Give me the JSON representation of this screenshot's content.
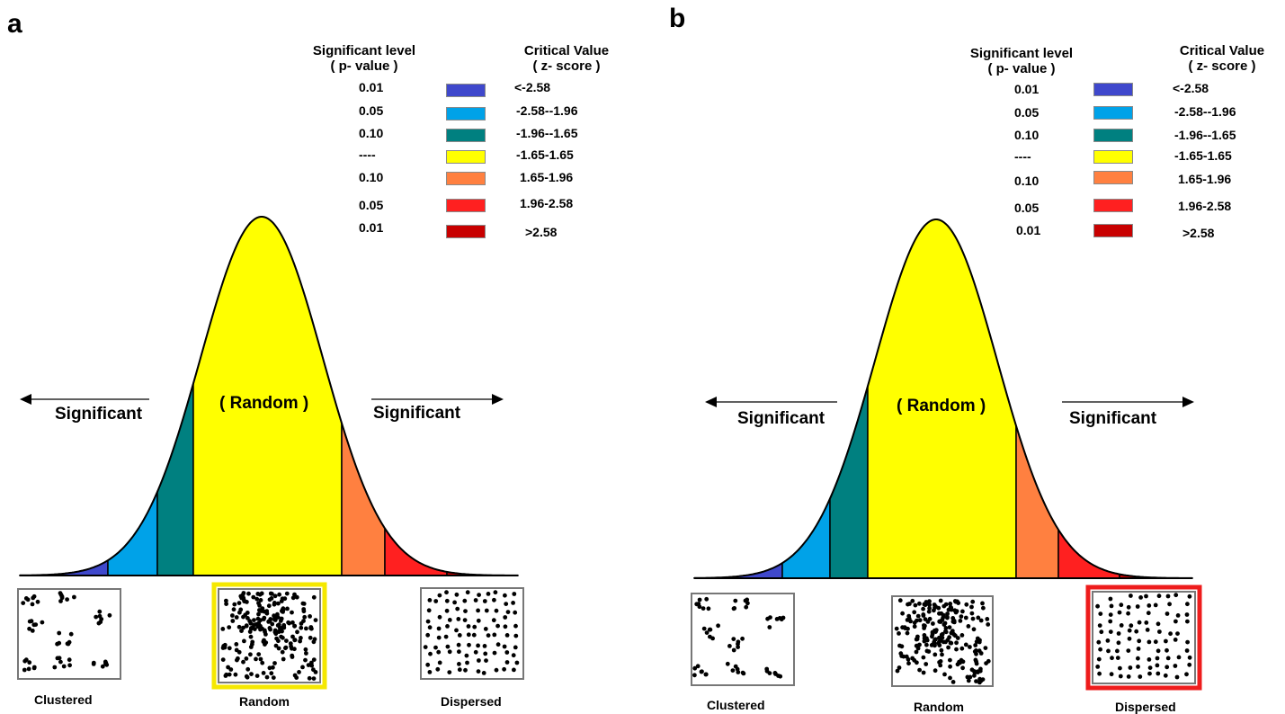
{
  "panels": [
    {
      "label": "a",
      "header": {
        "p_title": "Significant level",
        "p_sub": "( p- value )",
        "z_title": "Critical Value",
        "z_sub": "( z- score )"
      },
      "legend": [
        {
          "p": "0.01",
          "z": "<-2.58",
          "color": "#3f48cc"
        },
        {
          "p": "0.05",
          "z": "-2.58--1.96",
          "color": "#00a2e8"
        },
        {
          "p": "0.10",
          "z": "-1.96--1.65",
          "color": "#008080"
        },
        {
          "p": "----",
          "z": "-1.65-1.65",
          "color": "#ffff00"
        },
        {
          "p": "0.10",
          "z": "1.65-1.96",
          "color": "#ff8040"
        },
        {
          "p": "0.05",
          "z": "1.96-2.58",
          "color": "#ff2020"
        },
        {
          "p": "0.01",
          "z": ">2.58",
          "color": "#c80000"
        }
      ],
      "curve_label": "( Random )",
      "left_label": "Significant",
      "right_label": "Significant",
      "patterns": [
        {
          "caption": "Clustered",
          "kind": "clustered",
          "highlight": ""
        },
        {
          "caption": "Random",
          "kind": "random",
          "highlight": "#f5e800"
        },
        {
          "caption": "Dispersed",
          "kind": "dispersed",
          "highlight": ""
        }
      ]
    },
    {
      "label": "b",
      "header": {
        "p_title": "Significant level",
        "p_sub": "( p- value )",
        "z_title": "Critical Value",
        "z_sub": "( z- score )"
      },
      "legend": [
        {
          "p": "0.01",
          "z": "<-2.58",
          "color": "#3f48cc"
        },
        {
          "p": "0.05",
          "z": "-2.58--1.96",
          "color": "#00a2e8"
        },
        {
          "p": "0.10",
          "z": "-1.96--1.65",
          "color": "#008080"
        },
        {
          "p": "----",
          "z": "-1.65-1.65",
          "color": "#ffff00"
        },
        {
          "p": "0.10",
          "z": "1.65-1.96",
          "color": "#ff8040"
        },
        {
          "p": "0.05",
          "z": "1.96-2.58",
          "color": "#ff2020"
        },
        {
          "p": "0.01",
          "z": ">2.58",
          "color": "#c80000"
        }
      ],
      "curve_label": "( Random )",
      "left_label": "Significant",
      "right_label": "Significant",
      "patterns": [
        {
          "caption": "Clustered",
          "kind": "clustered",
          "highlight": ""
        },
        {
          "caption": "Random",
          "kind": "random",
          "highlight": ""
        },
        {
          "caption": "Dispersed",
          "kind": "dispersed",
          "highlight": "#ee1c1c"
        }
      ]
    }
  ]
}
